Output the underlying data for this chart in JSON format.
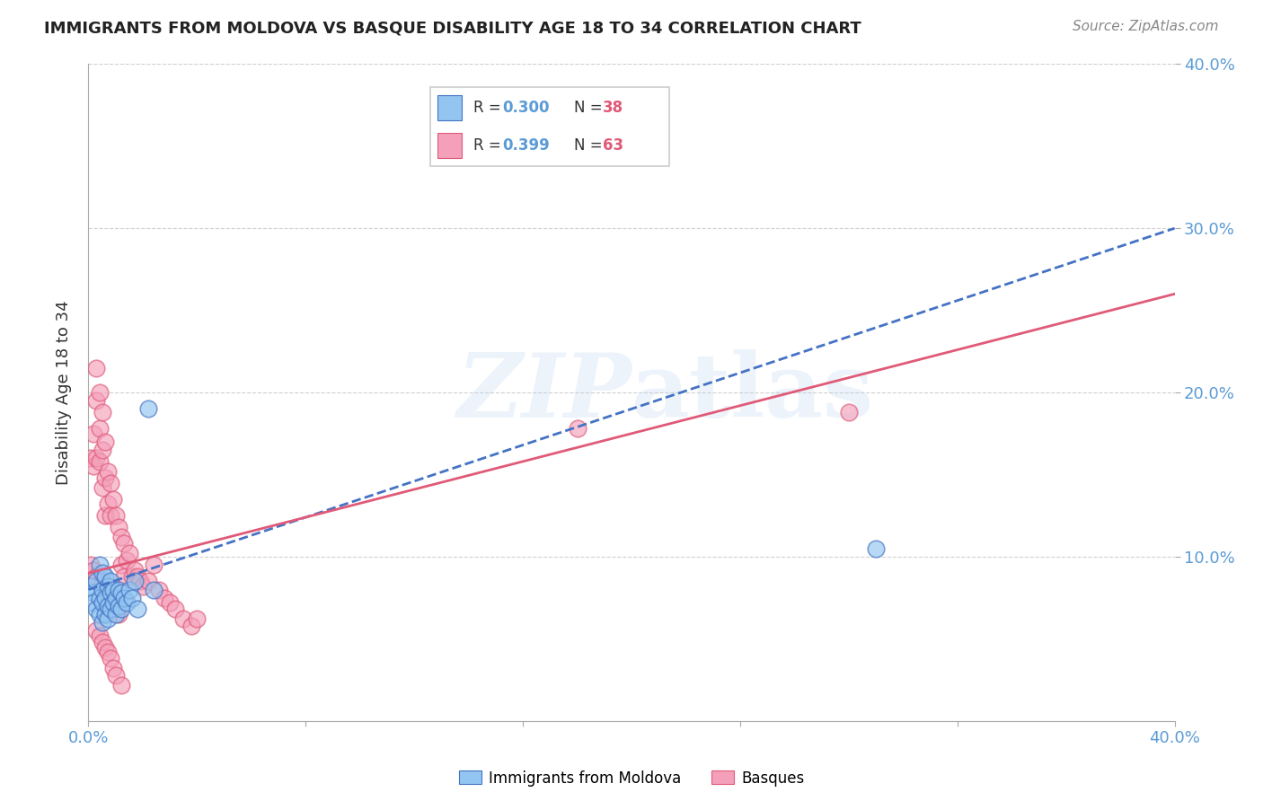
{
  "title": "IMMIGRANTS FROM MOLDOVA VS BASQUE DISABILITY AGE 18 TO 34 CORRELATION CHART",
  "source": "Source: ZipAtlas.com",
  "ylabel": "Disability Age 18 to 34",
  "xlim": [
    0.0,
    0.4
  ],
  "ylim": [
    0.0,
    0.4
  ],
  "color_blue": "#92C5F0",
  "color_pink": "#F4A0BB",
  "color_blue_line": "#4472C4",
  "color_pink_line": "#E05A78",
  "watermark": "ZIPatlas",
  "blue_x": [
    0.001,
    0.002,
    0.002,
    0.003,
    0.003,
    0.004,
    0.004,
    0.004,
    0.005,
    0.005,
    0.005,
    0.005,
    0.006,
    0.006,
    0.006,
    0.007,
    0.007,
    0.007,
    0.008,
    0.008,
    0.008,
    0.009,
    0.009,
    0.01,
    0.01,
    0.011,
    0.011,
    0.012,
    0.012,
    0.013,
    0.014,
    0.015,
    0.016,
    0.017,
    0.018,
    0.022,
    0.024,
    0.29
  ],
  "blue_y": [
    0.082,
    0.078,
    0.072,
    0.085,
    0.068,
    0.095,
    0.075,
    0.065,
    0.09,
    0.08,
    0.072,
    0.06,
    0.088,
    0.075,
    0.065,
    0.082,
    0.07,
    0.062,
    0.085,
    0.078,
    0.068,
    0.08,
    0.072,
    0.075,
    0.065,
    0.08,
    0.07,
    0.078,
    0.068,
    0.075,
    0.072,
    0.08,
    0.075,
    0.085,
    0.068,
    0.19,
    0.08,
    0.105
  ],
  "pink_x": [
    0.001,
    0.001,
    0.002,
    0.002,
    0.002,
    0.003,
    0.003,
    0.003,
    0.003,
    0.004,
    0.004,
    0.004,
    0.005,
    0.005,
    0.005,
    0.005,
    0.006,
    0.006,
    0.006,
    0.006,
    0.007,
    0.007,
    0.007,
    0.008,
    0.008,
    0.008,
    0.009,
    0.009,
    0.01,
    0.01,
    0.011,
    0.011,
    0.012,
    0.012,
    0.013,
    0.013,
    0.014,
    0.015,
    0.016,
    0.017,
    0.018,
    0.019,
    0.02,
    0.022,
    0.024,
    0.026,
    0.028,
    0.03,
    0.032,
    0.035,
    0.038,
    0.04,
    0.18,
    0.28,
    0.003,
    0.004,
    0.005,
    0.006,
    0.007,
    0.008,
    0.009,
    0.01,
    0.012
  ],
  "pink_y": [
    0.095,
    0.16,
    0.175,
    0.155,
    0.092,
    0.215,
    0.195,
    0.16,
    0.088,
    0.2,
    0.178,
    0.158,
    0.188,
    0.165,
    0.142,
    0.085,
    0.17,
    0.148,
    0.125,
    0.082,
    0.152,
    0.132,
    0.075,
    0.145,
    0.125,
    0.078,
    0.135,
    0.072,
    0.125,
    0.068,
    0.118,
    0.065,
    0.112,
    0.095,
    0.108,
    0.088,
    0.098,
    0.102,
    0.088,
    0.092,
    0.088,
    0.085,
    0.082,
    0.085,
    0.095,
    0.08,
    0.075,
    0.072,
    0.068,
    0.062,
    0.058,
    0.062,
    0.178,
    0.188,
    0.055,
    0.052,
    0.048,
    0.045,
    0.042,
    0.038,
    0.032,
    0.028,
    0.022
  ]
}
